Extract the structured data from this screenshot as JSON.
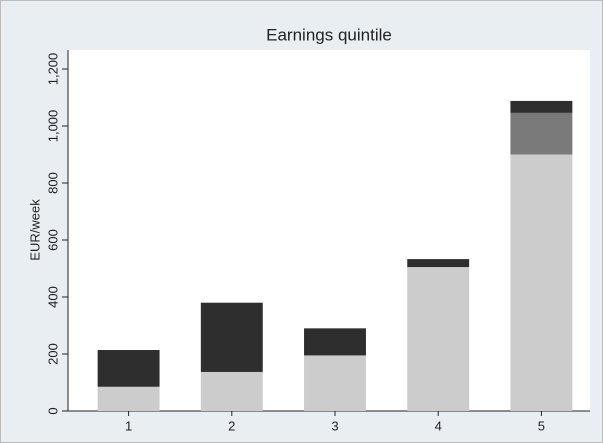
{
  "chart_data": {
    "type": "stacked_bar",
    "title": "Earnings quintile",
    "y_label": "EUR/week",
    "categories": [
      "1",
      "2",
      "3",
      "4",
      "5"
    ],
    "series": [
      {
        "color": "#cccccc",
        "values": [
          85,
          137,
          195,
          505,
          900
        ]
      },
      {
        "color": "#7a7a7a",
        "values": [
          0,
          0,
          0,
          0,
          146
        ]
      },
      {
        "color": "#2e2e2e",
        "values": [
          129,
          243,
          95,
          28,
          42
        ]
      }
    ],
    "ylim": [
      0,
      1200
    ],
    "yticks": [
      0,
      200,
      400,
      600,
      800,
      {
        "value": 1000,
        "label": "1,000"
      },
      {
        "value": 1200,
        "label": "1,200"
      }
    ],
    "grid": false
  }
}
